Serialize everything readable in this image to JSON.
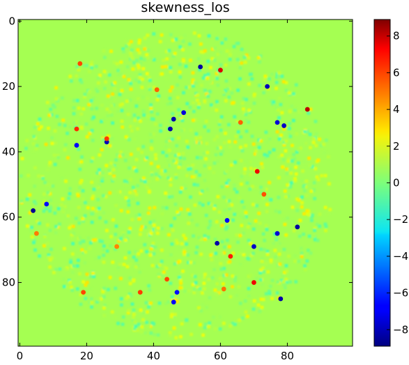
{
  "chart_data": {
    "type": "heatmap",
    "title": "skewness_los",
    "xlabel": "",
    "ylabel": "",
    "colormap": "jet",
    "background_value": 0.9,
    "xlim": [
      0,
      99
    ],
    "ylim": [
      99,
      0
    ],
    "vmin": -8.9,
    "vmax": 8.9,
    "x_ticks": [
      0,
      20,
      40,
      60,
      80
    ],
    "y_ticks": [
      0,
      20,
      40,
      60,
      80
    ],
    "colorbar_ticks": [
      8,
      6,
      4,
      2,
      0,
      -2,
      -4,
      -6,
      -8
    ],
    "disk": {
      "center": [
        47,
        50
      ],
      "radius": 47
    },
    "extreme_points": [
      {
        "x": 54,
        "y": 14,
        "value": -8.4
      },
      {
        "x": 60,
        "y": 15,
        "value": 7.5
      },
      {
        "x": 74,
        "y": 20,
        "value": -8.0
      },
      {
        "x": 86,
        "y": 27,
        "value": 8.0
      },
      {
        "x": 49,
        "y": 28,
        "value": -7.5
      },
      {
        "x": 46,
        "y": 30,
        "value": -8.2
      },
      {
        "x": 77,
        "y": 31,
        "value": -7.6
      },
      {
        "x": 79,
        "y": 32,
        "value": -7.8
      },
      {
        "x": 45,
        "y": 33,
        "value": -8.3
      },
      {
        "x": 17,
        "y": 33,
        "value": 6.5
      },
      {
        "x": 26,
        "y": 37,
        "value": -8.0
      },
      {
        "x": 17,
        "y": 38,
        "value": -7.0
      },
      {
        "x": 71,
        "y": 46,
        "value": 7.2
      },
      {
        "x": 4,
        "y": 58,
        "value": -8.6
      },
      {
        "x": 8,
        "y": 56,
        "value": -6.5
      },
      {
        "x": 83,
        "y": 63,
        "value": -8.4
      },
      {
        "x": 77,
        "y": 65,
        "value": -7.6
      },
      {
        "x": 59,
        "y": 68,
        "value": -8.3
      },
      {
        "x": 70,
        "y": 69,
        "value": -7.8
      },
      {
        "x": 63,
        "y": 72,
        "value": 6.8
      },
      {
        "x": 70,
        "y": 80,
        "value": 7.2
      },
      {
        "x": 78,
        "y": 85,
        "value": -8.3
      },
      {
        "x": 47,
        "y": 83,
        "value": -6.5
      },
      {
        "x": 46,
        "y": 86,
        "value": -7.0
      },
      {
        "x": 19,
        "y": 83,
        "value": 6.0
      },
      {
        "x": 36,
        "y": 83,
        "value": 6.2
      },
      {
        "x": 18,
        "y": 13,
        "value": 6.0
      },
      {
        "x": 62,
        "y": 61,
        "value": -6.8
      },
      {
        "x": 26,
        "y": 36,
        "value": 6.2
      },
      {
        "x": 73,
        "y": 53,
        "value": 5.8
      },
      {
        "x": 41,
        "y": 21,
        "value": 5.5
      },
      {
        "x": 44,
        "y": 79,
        "value": 6.0
      },
      {
        "x": 61,
        "y": 82,
        "value": 5.2
      },
      {
        "x": 29,
        "y": 69,
        "value": 4.8
      },
      {
        "x": 66,
        "y": 31,
        "value": 5.5
      },
      {
        "x": 5,
        "y": 65,
        "value": 5.0
      }
    ]
  }
}
